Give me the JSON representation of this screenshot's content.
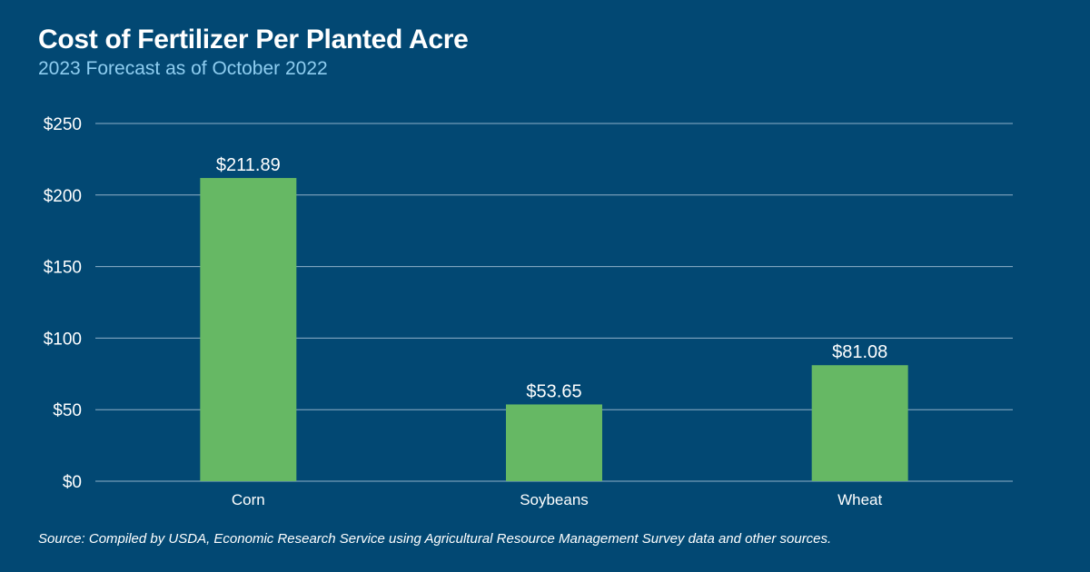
{
  "header": {
    "title": "Cost of Fertilizer Per Planted Acre",
    "subtitle": "2023 Forecast as of October 2022"
  },
  "footer": {
    "source": "Source: Compiled by USDA, Economic Research Service using Agricultural Resource Management Survey data and other sources."
  },
  "colors": {
    "background": "#024873",
    "bar": "#66b864",
    "subtitle": "#8ecdf0",
    "gridline": "#8fb0c8"
  },
  "chart_data": {
    "type": "bar",
    "categories": [
      "Corn",
      "Soybeans",
      "Wheat"
    ],
    "values": [
      211.89,
      53.65,
      81.08
    ],
    "data_labels": [
      "$211.89",
      "$53.65",
      "$81.08"
    ],
    "ylim": [
      0,
      250
    ],
    "yticks": [
      0,
      50,
      100,
      150,
      200,
      250
    ],
    "ytick_labels": [
      "$0",
      "$50",
      "$100",
      "$150",
      "$200",
      "$250"
    ],
    "grid": true,
    "legend": "none"
  }
}
